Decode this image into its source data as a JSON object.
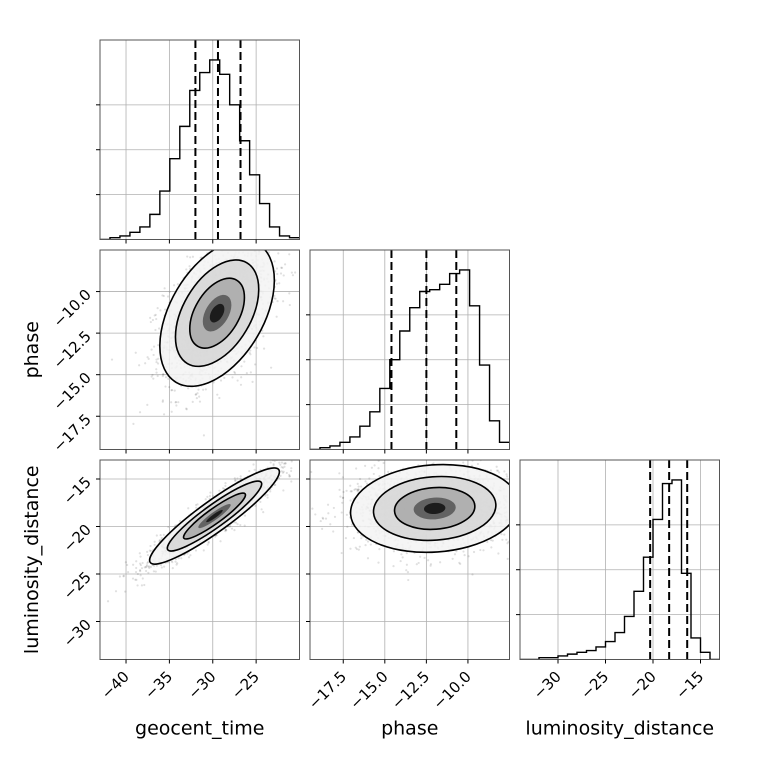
{
  "chart_data": {
    "type": "corner",
    "parameters": [
      "geocent_time",
      "phase",
      "luminosity_distance"
    ],
    "axis_labels": [
      "geocent_time",
      "phase",
      "luminosity_distance"
    ],
    "grid": true,
    "ranges": {
      "geocent_time": [
        -43.0,
        -20.0
      ],
      "phase": [
        -19.5,
        -7.5
      ],
      "luminosity_distance": [
        -34.0,
        -13.0
      ]
    },
    "ticks": {
      "geocent_time": [
        -40,
        -35,
        -30,
        -25
      ],
      "phase": [
        -17.5,
        -15.0,
        -12.5,
        -10.0
      ],
      "luminosity_distance": [
        -30,
        -25,
        -20,
        -15
      ]
    },
    "tick_labels": {
      "geocent_time": [
        "−40",
        "−35",
        "−30",
        "−25"
      ],
      "phase": [
        "−17.5",
        "−15.0",
        "−12.5",
        "−10.0"
      ],
      "luminosity_distance": [
        "−30",
        "−25",
        "−20",
        "−15"
      ]
    },
    "quantiles": {
      "geocent_time": [
        -32.0,
        -29.4,
        -26.8
      ],
      "phase": [
        -14.6,
        -12.5,
        -10.7
      ],
      "luminosity_distance": [
        -20.3,
        -18.3,
        -16.4
      ]
    },
    "histograms": {
      "geocent_time": [
        0.0,
        0.01,
        0.02,
        0.04,
        0.07,
        0.14,
        0.27,
        0.45,
        0.63,
        0.83,
        0.93,
        1.0,
        0.92,
        0.75,
        0.55,
        0.36,
        0.2,
        0.07,
        0.02,
        0.01
      ],
      "phase": [
        0.0,
        0.01,
        0.02,
        0.04,
        0.07,
        0.13,
        0.21,
        0.34,
        0.5,
        0.66,
        0.79,
        0.88,
        0.89,
        0.92,
        0.98,
        1.0,
        0.8,
        0.47,
        0.16,
        0.04
      ],
      "luminosity_distance": [
        0.0,
        0.0,
        0.01,
        0.01,
        0.02,
        0.03,
        0.04,
        0.05,
        0.07,
        0.1,
        0.15,
        0.24,
        0.38,
        0.57,
        0.78,
        0.98,
        1.0,
        0.48,
        0.12,
        0.04,
        0.0
      ]
    },
    "pairs": [
      {
        "x": "geocent_time",
        "y": "phase",
        "center": [
          -29.5,
          -11.3
        ],
        "sigma": [
          3.0,
          2.0
        ],
        "rho": 0.45
      },
      {
        "x": "geocent_time",
        "y": "luminosity_distance",
        "center": [
          -29.8,
          -18.9
        ],
        "sigma": [
          3.4,
          2.3
        ],
        "rho": 0.92
      },
      {
        "x": "phase",
        "y": "luminosity_distance",
        "center": [
          -12.0,
          -18.1
        ],
        "sigma": [
          2.3,
          2.1
        ],
        "rho": 0.1
      }
    ]
  }
}
